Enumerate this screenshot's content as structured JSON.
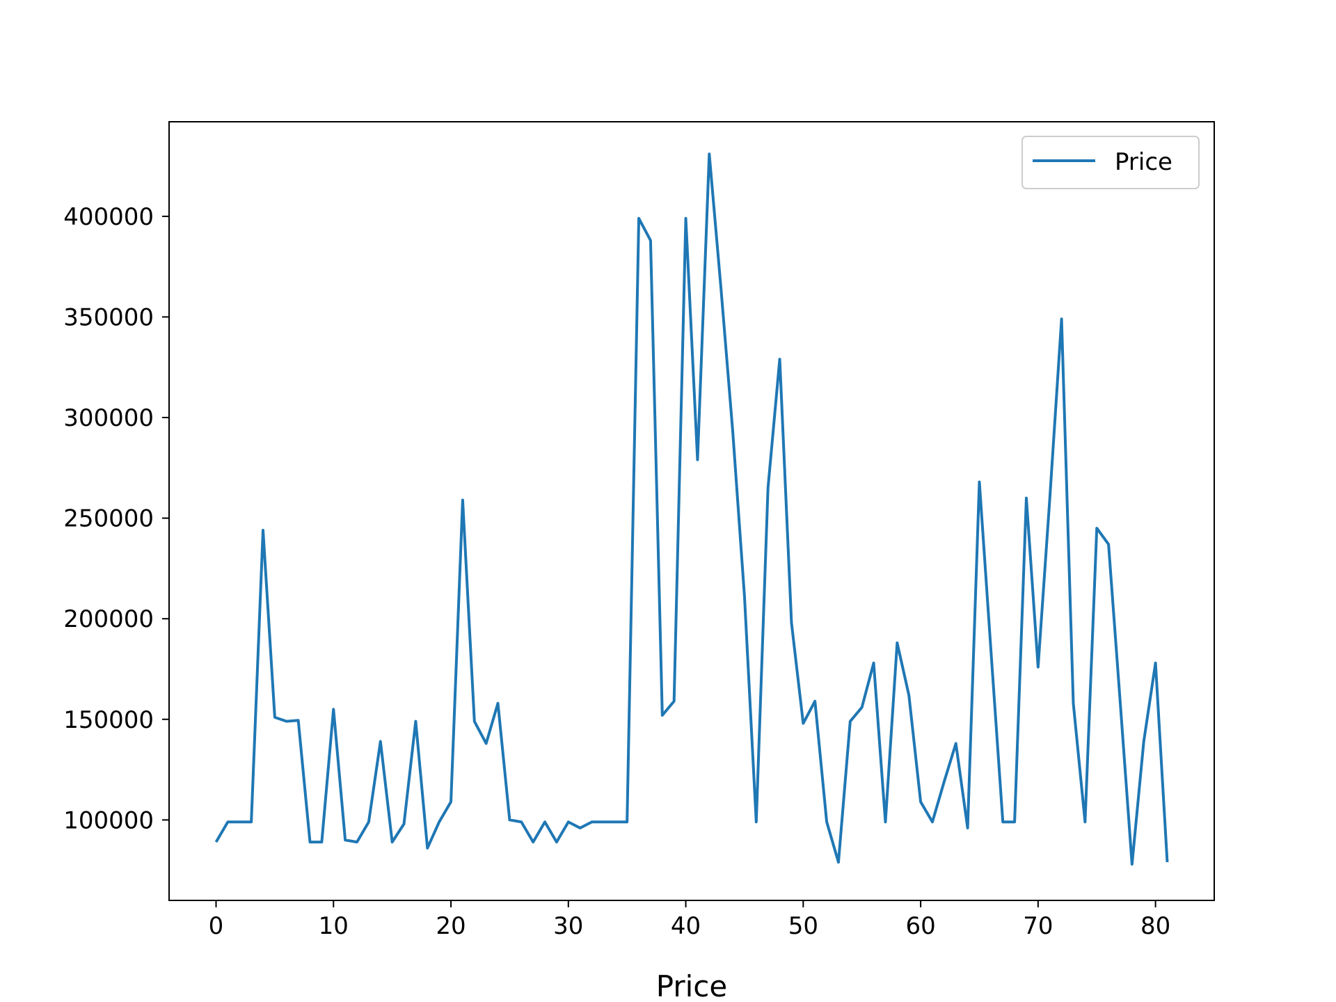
{
  "chart_data": {
    "type": "line",
    "title": "",
    "xlabel": "Price",
    "ylabel": "",
    "xlim": [
      -4,
      85
    ],
    "ylim": [
      60000,
      447000
    ],
    "grid": false,
    "legend_position": "top-right",
    "x_ticks": [
      0,
      10,
      20,
      30,
      40,
      50,
      60,
      70,
      80
    ],
    "y_ticks": [
      100000,
      150000,
      200000,
      250000,
      300000,
      350000,
      400000
    ],
    "series": [
      {
        "name": "Price",
        "color": "#1f77b4",
        "values": [
          89000,
          99000,
          99000,
          99000,
          244000,
          151000,
          149000,
          149500,
          89000,
          89000,
          155000,
          90000,
          89000,
          99000,
          139000,
          89000,
          98000,
          149000,
          86000,
          99000,
          109000,
          259000,
          149000,
          138000,
          158000,
          100000,
          99000,
          89000,
          99000,
          89000,
          99000,
          96000,
          99000,
          99000,
          99000,
          99000,
          399000,
          388000,
          152000,
          159000,
          399000,
          279000,
          431000,
          364000,
          293000,
          211000,
          99000,
          265000,
          329000,
          198000,
          148000,
          159000,
          99000,
          79000,
          149000,
          156000,
          178000,
          99000,
          188000,
          162000,
          109000,
          99000,
          119000,
          138000,
          96000,
          268000,
          183000,
          99000,
          99000,
          260000,
          176000,
          260000,
          349000,
          158000,
          99000,
          245000,
          237000,
          158000,
          78000,
          139000,
          178000,
          79000
        ]
      }
    ]
  }
}
